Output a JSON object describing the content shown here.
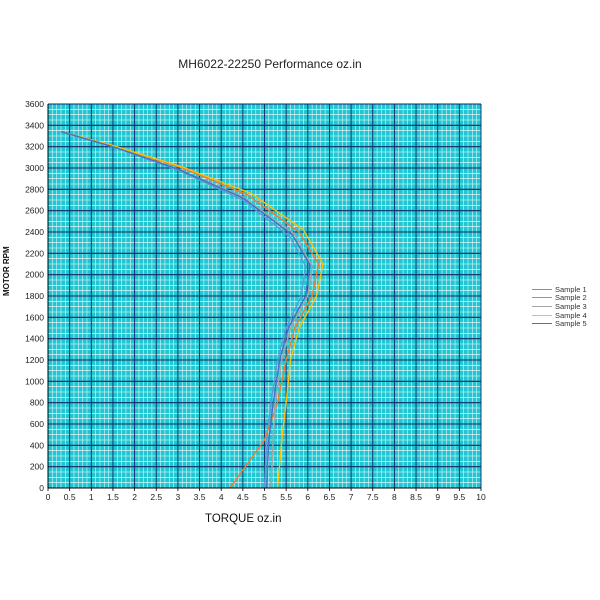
{
  "chart_data": {
    "type": "line",
    "title": "MH6022-22250  Performance oz.in",
    "xlabel": "TORQUE  oz.in",
    "ylabel": "MOTOR RPM",
    "xlim": [
      0,
      10
    ],
    "ylim": [
      0,
      3600
    ],
    "x_ticks": [
      "0",
      "0.5",
      "1",
      "1.5",
      "2",
      "2.5",
      "3",
      "3.5",
      "4",
      "4.5",
      "5",
      "5.5",
      "6",
      "6.5",
      "7",
      "7.5",
      "8",
      "8.5",
      "9",
      "9.5",
      "10"
    ],
    "y_ticks": [
      "0",
      "200",
      "400",
      "600",
      "800",
      "1000",
      "1200",
      "1400",
      "1600",
      "1800",
      "2000",
      "2200",
      "2400",
      "2600",
      "2800",
      "3000",
      "3200",
      "3400",
      "3600"
    ],
    "x_tick_values": [
      0,
      0.5,
      1,
      1.5,
      2,
      2.5,
      3,
      3.5,
      4,
      4.5,
      5,
      5.5,
      6,
      6.5,
      7,
      7.5,
      8,
      8.5,
      9,
      9.5,
      10
    ],
    "y_tick_values": [
      0,
      200,
      400,
      600,
      800,
      1000,
      1200,
      1400,
      1600,
      1800,
      2000,
      2200,
      2400,
      2600,
      2800,
      3000,
      3200,
      3400,
      3600
    ],
    "grid": true,
    "legend_position": "right",
    "background_color": "#21c6d3",
    "major_grid_color": "#0d2a6b",
    "minor_grid_color": "#ffffff",
    "series": [
      {
        "name": "Sample 1",
        "color": "#5b9bd5",
        "points": [
          [
            0.3,
            3340
          ],
          [
            1.5,
            3200
          ],
          [
            3.0,
            2980
          ],
          [
            4.5,
            2700
          ],
          [
            5.6,
            2350
          ],
          [
            5.95,
            2080
          ],
          [
            5.85,
            1800
          ],
          [
            5.5,
            1500
          ],
          [
            5.3,
            1200
          ],
          [
            5.15,
            800
          ],
          [
            5.05,
            450
          ],
          [
            5.0,
            0
          ]
        ]
      },
      {
        "name": "Sample 2",
        "color": "#ed7d31",
        "points": [
          [
            0.3,
            3340
          ],
          [
            1.5,
            3210
          ],
          [
            3.1,
            3000
          ],
          [
            4.6,
            2750
          ],
          [
            5.8,
            2400
          ],
          [
            6.25,
            2100
          ],
          [
            6.1,
            1800
          ],
          [
            5.7,
            1500
          ],
          [
            5.5,
            1200
          ],
          [
            5.3,
            800
          ],
          [
            5.0,
            450
          ],
          [
            4.2,
            0
          ]
        ]
      },
      {
        "name": "Sample 3",
        "color": "#a5a5a5",
        "points": [
          [
            0.3,
            3340
          ],
          [
            1.5,
            3200
          ],
          [
            3.0,
            2990
          ],
          [
            4.5,
            2730
          ],
          [
            5.7,
            2380
          ],
          [
            6.1,
            2080
          ],
          [
            6.0,
            1800
          ],
          [
            5.6,
            1500
          ],
          [
            5.4,
            1200
          ],
          [
            5.25,
            800
          ],
          [
            5.2,
            450
          ],
          [
            5.15,
            0
          ]
        ]
      },
      {
        "name": "Sample 4",
        "color": "#ffc000",
        "points": [
          [
            0.3,
            3340
          ],
          [
            1.5,
            3210
          ],
          [
            3.1,
            3010
          ],
          [
            4.7,
            2760
          ],
          [
            5.9,
            2420
          ],
          [
            6.35,
            2100
          ],
          [
            6.2,
            1800
          ],
          [
            5.8,
            1500
          ],
          [
            5.6,
            1200
          ],
          [
            5.5,
            800
          ],
          [
            5.4,
            450
          ],
          [
            5.3,
            0
          ]
        ]
      },
      {
        "name": "Sample 5",
        "color": "#4472c4",
        "points": [
          [
            0.3,
            3340
          ],
          [
            1.5,
            3200
          ],
          [
            3.0,
            2990
          ],
          [
            4.5,
            2720
          ],
          [
            5.65,
            2370
          ],
          [
            6.05,
            2090
          ],
          [
            5.95,
            1800
          ],
          [
            5.55,
            1500
          ],
          [
            5.35,
            1200
          ],
          [
            5.2,
            800
          ],
          [
            5.1,
            450
          ],
          [
            5.05,
            0
          ]
        ]
      }
    ]
  }
}
